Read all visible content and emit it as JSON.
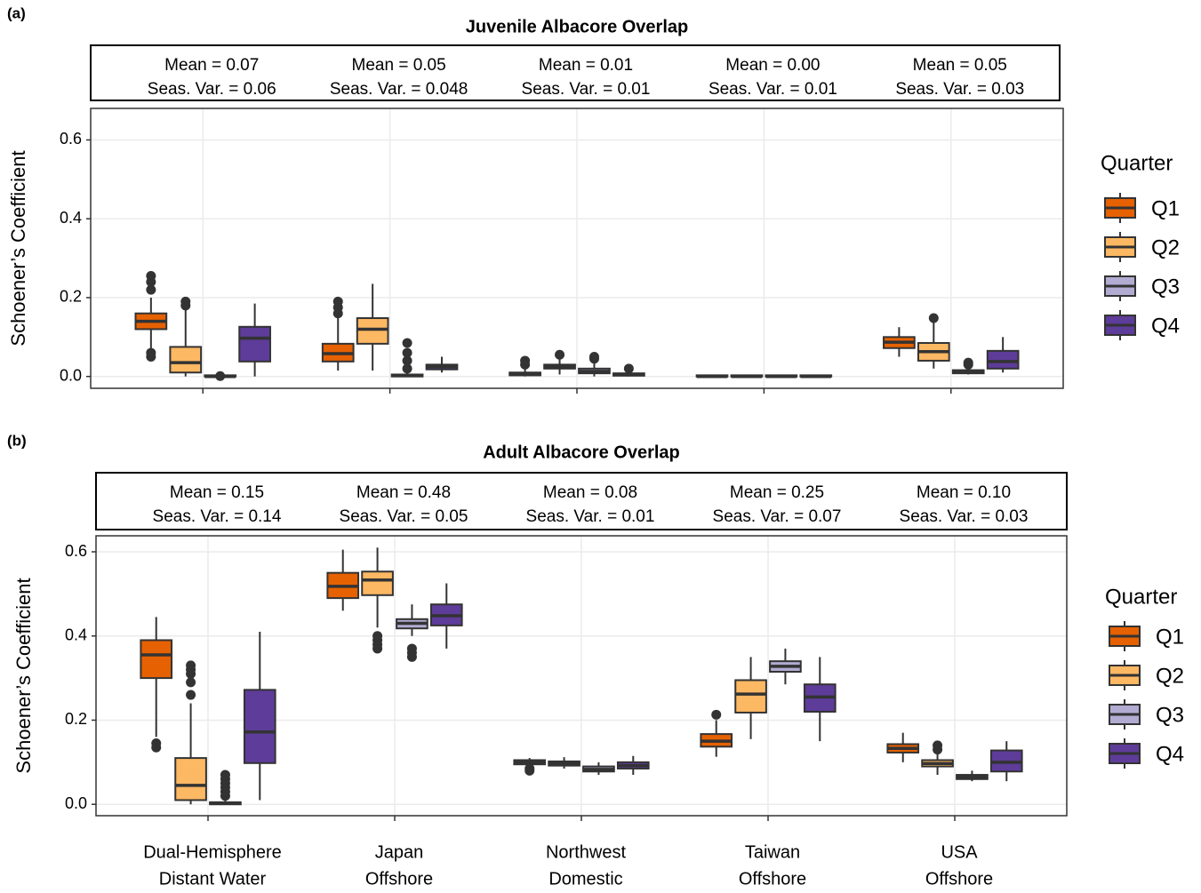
{
  "chart_data": [
    {
      "type": "box",
      "panel_label": "(a)",
      "title": "Juvenile Albacore Overlap",
      "strip_labels": [
        [
          "Mean = 0.07",
          "Seas. Var. = 0.06"
        ],
        [
          "Mean = 0.05",
          "Seas. Var. = 0.048"
        ],
        [
          "Mean = 0.01",
          "Seas. Var. = 0.01"
        ],
        [
          "Mean = 0.00",
          "Seas. Var. = 0.01"
        ],
        [
          "Mean = 0.05",
          "Seas. Var. = 0.03"
        ]
      ],
      "y_label": "Schoener’s Coefficient",
      "legend_title": "Quarter",
      "grid": true,
      "ylim": [
        -0.03,
        0.68
      ],
      "yticks": [
        {
          "value": 0,
          "label": "0.0"
        },
        0.2,
        0.4,
        0.6
      ],
      "series": [
        {
          "name": "Q1",
          "color": "#e66101",
          "boxes": [
            {
              "min": 0.07,
              "q1": 0.12,
              "median": 0.14,
              "q3": 0.16,
              "max": 0.2,
              "outliers": [
                0.05,
                0.06,
                0.22,
                0.24,
                0.255
              ]
            },
            {
              "min": 0.015,
              "q1": 0.038,
              "median": 0.058,
              "q3": 0.083,
              "max": 0.15,
              "outliers": [
                0.16,
                0.175,
                0.19
              ]
            },
            {
              "min": 0,
              "q1": 0.003,
              "median": 0.005,
              "q3": 0.01,
              "max": 0.02,
              "outliers": [
                0.03,
                0.04
              ]
            },
            {
              "min": 0,
              "q1": 0,
              "median": 0,
              "q3": 0.003,
              "max": 0.005,
              "outliers": []
            },
            {
              "min": 0.05,
              "q1": 0.072,
              "median": 0.087,
              "q3": 0.1,
              "max": 0.125,
              "outliers": []
            }
          ]
        },
        {
          "name": "Q2",
          "color": "#fdb863",
          "boxes": [
            {
              "min": 0,
              "q1": 0.01,
              "median": 0.035,
              "q3": 0.075,
              "max": 0.17,
              "outliers": [
                0.18,
                0.19
              ]
            },
            {
              "min": 0.015,
              "q1": 0.083,
              "median": 0.12,
              "q3": 0.148,
              "max": 0.235,
              "outliers": []
            },
            {
              "min": 0.005,
              "q1": 0.02,
              "median": 0.025,
              "q3": 0.03,
              "max": 0.045,
              "outliers": [
                0.055
              ]
            },
            {
              "min": 0,
              "q1": 0,
              "median": 0,
              "q3": 0.003,
              "max": 0.005,
              "outliers": []
            },
            {
              "min": 0.02,
              "q1": 0.04,
              "median": 0.063,
              "q3": 0.085,
              "max": 0.14,
              "outliers": [
                0.148
              ]
            }
          ]
        },
        {
          "name": "Q3",
          "color": "#b2abd2",
          "boxes": [
            {
              "min": 0,
              "q1": 0,
              "median": 0,
              "q3": 0.003,
              "max": 0.005,
              "outliers": [
                0.001
              ]
            },
            {
              "min": 0,
              "q1": 0,
              "median": 0.002,
              "q3": 0.005,
              "max": 0.01,
              "outliers": [
                0.02,
                0.04,
                0.06,
                0.085
              ]
            },
            {
              "min": 0,
              "q1": 0.008,
              "median": 0.013,
              "q3": 0.02,
              "max": 0.035,
              "outliers": [
                0.045,
                0.05
              ]
            },
            {
              "min": 0,
              "q1": 0,
              "median": 0,
              "q3": 0.003,
              "max": 0.005,
              "outliers": []
            },
            {
              "min": 0.005,
              "q1": 0.008,
              "median": 0.012,
              "q3": 0.016,
              "max": 0.02,
              "outliers": [
                0.03,
                0.035
              ]
            }
          ]
        },
        {
          "name": "Q4",
          "color": "#5e3c99",
          "boxes": [
            {
              "min": 0,
              "q1": 0.038,
              "median": 0.097,
              "q3": 0.126,
              "max": 0.185,
              "outliers": []
            },
            {
              "min": 0.01,
              "q1": 0.018,
              "median": 0.025,
              "q3": 0.03,
              "max": 0.05,
              "outliers": []
            },
            {
              "min": 0,
              "q1": 0.002,
              "median": 0.005,
              "q3": 0.008,
              "max": 0.015,
              "outliers": [
                0.02
              ]
            },
            {
              "min": 0,
              "q1": 0,
              "median": 0,
              "q3": 0.003,
              "max": 0.005,
              "outliers": []
            },
            {
              "min": 0.01,
              "q1": 0.02,
              "median": 0.038,
              "q3": 0.065,
              "max": 0.1,
              "outliers": []
            }
          ]
        }
      ]
    },
    {
      "type": "box",
      "panel_label": "(b)",
      "title": "Adult Albacore Overlap",
      "strip_labels": [
        [
          "Mean = 0.15",
          "Seas. Var. = 0.14"
        ],
        [
          "Mean = 0.48",
          "Seas. Var. = 0.05"
        ],
        [
          "Mean = 0.08",
          "Seas. Var. = 0.01"
        ],
        [
          "Mean = 0.25",
          "Seas. Var. = 0.07"
        ],
        [
          "Mean = 0.10",
          "Seas. Var. = 0.03"
        ]
      ],
      "categories": [
        [
          "Dual-Hemisphere",
          "Distant Water"
        ],
        [
          "Japan",
          "Offshore"
        ],
        [
          "Northwest",
          "Domestic"
        ],
        [
          "Taiwan",
          "Offshore"
        ],
        [
          "USA",
          "Offshore"
        ]
      ],
      "y_label": "Schoener’s Coefficient",
      "legend_title": "Quarter",
      "grid": true,
      "ylim": [
        -0.027,
        0.638
      ],
      "yticks": [
        {
          "value": 0,
          "label": "0.0"
        },
        0.2,
        0.4,
        0.6
      ],
      "series": [
        {
          "name": "Q1",
          "color": "#e66101",
          "boxes": [
            {
              "min": 0.16,
              "q1": 0.3,
              "median": 0.355,
              "q3": 0.39,
              "max": 0.445,
              "outliers": [
                0.135,
                0.145
              ]
            },
            {
              "min": 0.46,
              "q1": 0.49,
              "median": 0.518,
              "q3": 0.55,
              "max": 0.605,
              "outliers": []
            },
            {
              "min": 0.09,
              "q1": 0.095,
              "median": 0.1,
              "q3": 0.105,
              "max": 0.11,
              "outliers": [
                0.08,
                0.085
              ]
            },
            {
              "min": 0.113,
              "q1": 0.137,
              "median": 0.15,
              "q3": 0.167,
              "max": 0.2,
              "outliers": [
                0.213
              ]
            },
            {
              "min": 0.1,
              "q1": 0.123,
              "median": 0.133,
              "q3": 0.143,
              "max": 0.17,
              "outliers": []
            }
          ]
        },
        {
          "name": "Q2",
          "color": "#fdb863",
          "boxes": [
            {
              "min": 0,
              "q1": 0.01,
              "median": 0.045,
              "q3": 0.11,
              "max": 0.24,
              "outliers": [
                0.26,
                0.29,
                0.31,
                0.32,
                0.33
              ]
            },
            {
              "min": 0.42,
              "q1": 0.497,
              "median": 0.533,
              "q3": 0.553,
              "max": 0.61,
              "outliers": [
                0.37,
                0.38,
                0.39,
                0.4
              ]
            },
            {
              "min": 0.085,
              "q1": 0.092,
              "median": 0.097,
              "q3": 0.102,
              "max": 0.112,
              "outliers": []
            },
            {
              "min": 0.155,
              "q1": 0.218,
              "median": 0.262,
              "q3": 0.295,
              "max": 0.35,
              "outliers": []
            },
            {
              "min": 0.07,
              "q1": 0.09,
              "median": 0.097,
              "q3": 0.105,
              "max": 0.125,
              "outliers": [
                0.13,
                0.14
              ]
            }
          ]
        },
        {
          "name": "Q3",
          "color": "#b2abd2",
          "boxes": [
            {
              "min": 0,
              "q1": 0,
              "median": 0.002,
              "q3": 0.005,
              "max": 0.01,
              "outliers": [
                0.02,
                0.03,
                0.04,
                0.05,
                0.06,
                0.07
              ]
            },
            {
              "min": 0.4,
              "q1": 0.418,
              "median": 0.43,
              "q3": 0.44,
              "max": 0.475,
              "outliers": [
                0.35,
                0.36,
                0.37
              ]
            },
            {
              "min": 0.07,
              "q1": 0.078,
              "median": 0.083,
              "q3": 0.09,
              "max": 0.1,
              "outliers": []
            },
            {
              "min": 0.285,
              "q1": 0.315,
              "median": 0.328,
              "q3": 0.34,
              "max": 0.37,
              "outliers": []
            },
            {
              "min": 0.055,
              "q1": 0.06,
              "median": 0.065,
              "q3": 0.07,
              "max": 0.08,
              "outliers": []
            }
          ]
        },
        {
          "name": "Q4",
          "color": "#5e3c99",
          "boxes": [
            {
              "min": 0.01,
              "q1": 0.098,
              "median": 0.172,
              "q3": 0.272,
              "max": 0.41,
              "outliers": []
            },
            {
              "min": 0.37,
              "q1": 0.425,
              "median": 0.448,
              "q3": 0.475,
              "max": 0.525,
              "outliers": []
            },
            {
              "min": 0.07,
              "q1": 0.085,
              "median": 0.092,
              "q3": 0.1,
              "max": 0.115,
              "outliers": []
            },
            {
              "min": 0.15,
              "q1": 0.22,
              "median": 0.255,
              "q3": 0.285,
              "max": 0.35,
              "outliers": []
            },
            {
              "min": 0.055,
              "q1": 0.078,
              "median": 0.1,
              "q3": 0.128,
              "max": 0.15,
              "outliers": []
            }
          ]
        }
      ]
    }
  ]
}
